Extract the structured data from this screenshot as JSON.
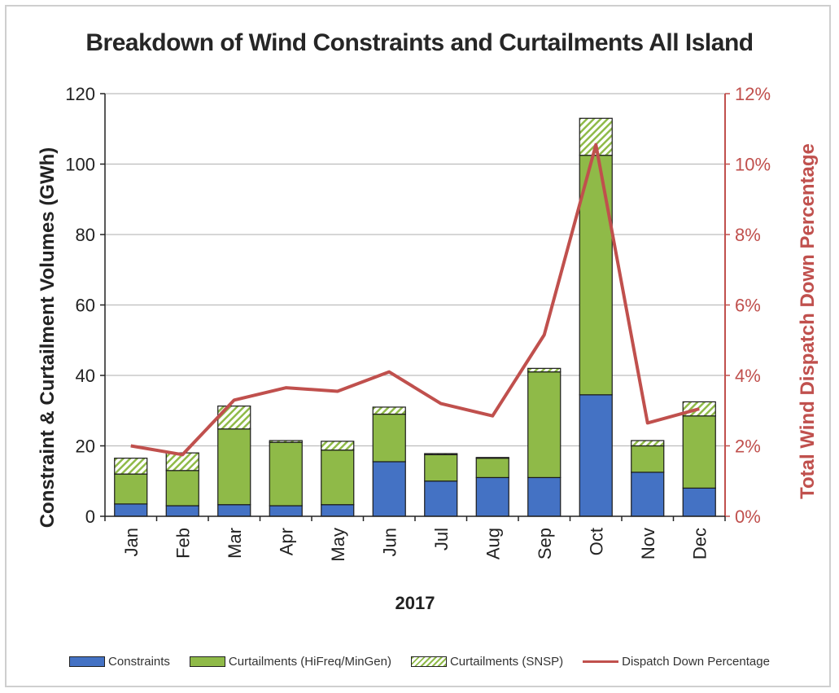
{
  "chart_data": {
    "type": "bar",
    "title": "Breakdown of Wind Constraints and Curtailments All Island",
    "xlabel": "2017",
    "ylabel": "Constraint & Curtailment Volumes (GWh)",
    "y2label": "Total Wind Dispatch Down Percentage",
    "categories": [
      "Jan",
      "Feb",
      "Mar",
      "Apr",
      "May",
      "Jun",
      "Jul",
      "Aug",
      "Sep",
      "Oct",
      "Nov",
      "Dec"
    ],
    "ylim": [
      0,
      120
    ],
    "yticks": [
      "0",
      "20",
      "40",
      "60",
      "80",
      "100",
      "120"
    ],
    "y2lim": [
      0,
      12
    ],
    "y2ticks": [
      "0%",
      "2%",
      "4%",
      "6%",
      "8%",
      "10%",
      "12%"
    ],
    "grid": true,
    "legend_position": "bottom",
    "series": [
      {
        "name": "Constraints",
        "kind": "bar-stacked",
        "color": "#4472c4",
        "values": [
          3.5,
          3,
          3.3,
          3,
          3.3,
          15.5,
          10,
          11,
          11,
          34.5,
          12.5,
          8
        ]
      },
      {
        "name": "Curtailments (HiFreq/MinGen)",
        "kind": "bar-stacked",
        "color": "#8fba48",
        "values": [
          8.5,
          10,
          21.5,
          18,
          15.5,
          13.5,
          7.5,
          5.5,
          30,
          68,
          7.5,
          20.5
        ]
      },
      {
        "name": "Curtailments (SNSP)",
        "kind": "bar-stacked-hatched",
        "color": "#8fba48",
        "values": [
          4.5,
          5,
          6.5,
          0.5,
          2.5,
          2,
          0.3,
          0.2,
          1,
          10.5,
          1.5,
          4
        ]
      },
      {
        "name": "Dispatch Down Percentage",
        "kind": "line",
        "axis": "secondary",
        "color": "#c0504d",
        "values": [
          2.0,
          1.75,
          3.3,
          3.65,
          3.55,
          4.1,
          3.2,
          2.85,
          5.15,
          10.55,
          2.65,
          3.05
        ]
      }
    ]
  }
}
